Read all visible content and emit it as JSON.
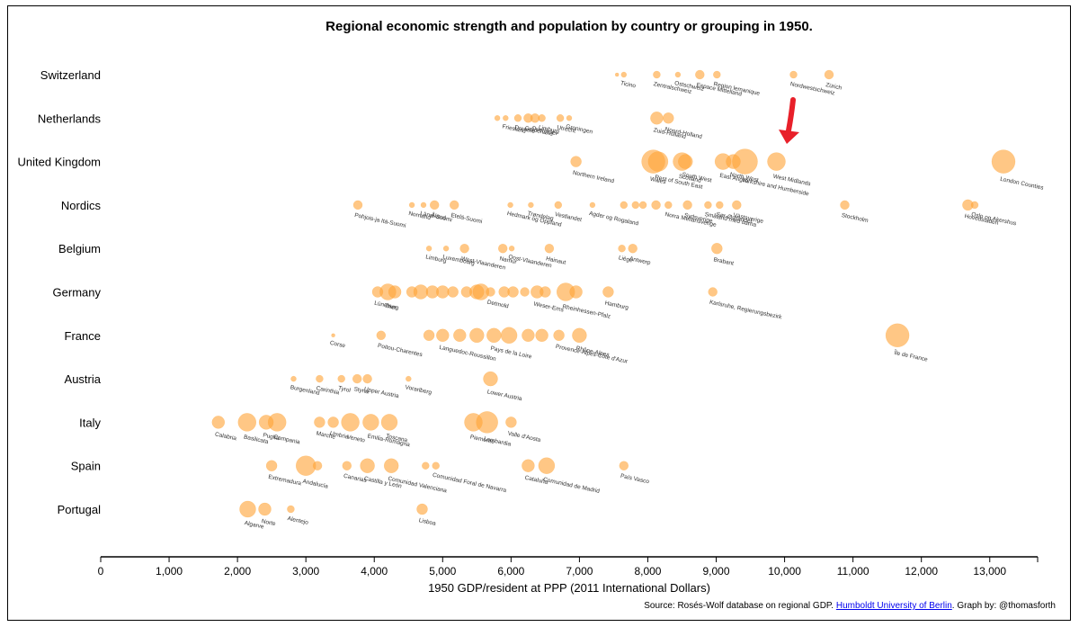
{
  "chart_data": {
    "type": "scatter",
    "title": "Regional economic strength and population by country or grouping in 1950.",
    "xlabel": "1950 GDP/resident at PPP (2011 International Dollars)",
    "ylabel": "",
    "xlim": [
      0,
      13700
    ],
    "x_ticks": [
      0,
      1000,
      2000,
      3000,
      4000,
      5000,
      6000,
      7000,
      8000,
      9000,
      10000,
      11000,
      12000,
      13000
    ],
    "x_tick_labels": [
      "0",
      "1,000",
      "2,000",
      "3,000",
      "4,000",
      "5,000",
      "6,000",
      "7,000",
      "8,000",
      "9,000",
      "10,000",
      "11,000",
      "12,000",
      "13,000"
    ],
    "annotation": "Red arrow pointing to West Midlands (United Kingdom)",
    "groups": [
      {
        "country": "Switzerland",
        "points": [
          {
            "x": 7550,
            "size": 2,
            "label": ""
          },
          {
            "x": 7650,
            "size": 3,
            "label": "Ticino"
          },
          {
            "x": 8130,
            "size": 4,
            "label": "Zentralschweiz"
          },
          {
            "x": 8440,
            "size": 3,
            "label": "Ostschweiz"
          },
          {
            "x": 8760,
            "size": 5,
            "label": "Espace Mittelland"
          },
          {
            "x": 9010,
            "size": 4,
            "label": "Region lemanique"
          },
          {
            "x": 10130,
            "size": 4,
            "label": "Nordwestschweiz"
          },
          {
            "x": 10650,
            "size": 5,
            "label": "Zürich"
          }
        ]
      },
      {
        "country": "Netherlands",
        "points": [
          {
            "x": 5800,
            "size": 3,
            "label": ""
          },
          {
            "x": 5920,
            "size": 3,
            "label": "Friesland"
          },
          {
            "x": 6100,
            "size": 4,
            "label": "Drenthe"
          },
          {
            "x": 6250,
            "size": 5,
            "label": "Gelderland"
          },
          {
            "x": 6350,
            "size": 5,
            "label": "Overijssel"
          },
          {
            "x": 6450,
            "size": 4,
            "label": "Limburg"
          },
          {
            "x": 6720,
            "size": 4,
            "label": "Utrecht"
          },
          {
            "x": 6850,
            "size": 3,
            "label": "Groningen"
          },
          {
            "x": 8130,
            "size": 7,
            "label": "Zuid-Holland"
          },
          {
            "x": 8300,
            "size": 6,
            "label": "Noord-Holland"
          }
        ]
      },
      {
        "country": "United Kingdom",
        "points": [
          {
            "x": 6950,
            "size": 6,
            "label": "Northern Ireland"
          },
          {
            "x": 8080,
            "size": 13,
            "label": "Wales"
          },
          {
            "x": 8150,
            "size": 11,
            "label": "Rest of South East"
          },
          {
            "x": 8500,
            "size": 10,
            "label": "Scotland"
          },
          {
            "x": 8550,
            "size": 8,
            "label": "South West"
          },
          {
            "x": 9100,
            "size": 9,
            "label": "East Anglia"
          },
          {
            "x": 9250,
            "size": 8,
            "label": "North West"
          },
          {
            "x": 9420,
            "size": 14,
            "label": "Yorkshire and Humberside"
          },
          {
            "x": 9880,
            "size": 10,
            "label": "West Midlands"
          },
          {
            "x": 13200,
            "size": 13,
            "label": "London Counties"
          }
        ]
      },
      {
        "country": "Nordics",
        "points": [
          {
            "x": 3760,
            "size": 5,
            "label": "Pohjois-ja Itä-Suomi"
          },
          {
            "x": 4550,
            "size": 3,
            "label": "Norrland"
          },
          {
            "x": 4720,
            "size": 3,
            "label": "Länsi-Suomi"
          },
          {
            "x": 4880,
            "size": 5,
            "label": "Åland"
          },
          {
            "x": 5170,
            "size": 5,
            "label": "Etelä-Suomi"
          },
          {
            "x": 5990,
            "size": 3,
            "label": "Hedmark og Oppland"
          },
          {
            "x": 6290,
            "size": 3,
            "label": "Trøndelag"
          },
          {
            "x": 6690,
            "size": 4,
            "label": "Vestlandet"
          },
          {
            "x": 7190,
            "size": 3,
            "label": "Agder og Rogaland"
          },
          {
            "x": 7650,
            "size": 4,
            "label": ""
          },
          {
            "x": 7820,
            "size": 4,
            "label": ""
          },
          {
            "x": 7930,
            "size": 4,
            "label": ""
          },
          {
            "x": 8120,
            "size": 5,
            "label": ""
          },
          {
            "x": 8300,
            "size": 4,
            "label": "Norra Mellansverige"
          },
          {
            "x": 8580,
            "size": 5,
            "label": "Sydsverige"
          },
          {
            "x": 8880,
            "size": 4,
            "label": "Småland med öarna"
          },
          {
            "x": 9050,
            "size": 4,
            "label": "Sør-Østlandet"
          },
          {
            "x": 9300,
            "size": 5,
            "label": "Västsverige"
          },
          {
            "x": 10880,
            "size": 5,
            "label": "Stockholm"
          },
          {
            "x": 12680,
            "size": 6,
            "label": "Hovedstaden"
          },
          {
            "x": 12780,
            "size": 4,
            "label": "Oslo og Akershus"
          }
        ]
      },
      {
        "country": "Belgium",
        "points": [
          {
            "x": 4800,
            "size": 3,
            "label": "Limburg"
          },
          {
            "x": 5050,
            "size": 3,
            "label": "Luxembourg"
          },
          {
            "x": 5320,
            "size": 5,
            "label": "West-Vlaanderen"
          },
          {
            "x": 5880,
            "size": 5,
            "label": "Namur"
          },
          {
            "x": 6010,
            "size": 3,
            "label": "Oost-Vlaanderen"
          },
          {
            "x": 6560,
            "size": 5,
            "label": "Hainaut"
          },
          {
            "x": 7620,
            "size": 4,
            "label": "Liège"
          },
          {
            "x": 7780,
            "size": 5,
            "label": "Antwerp"
          },
          {
            "x": 9010,
            "size": 6,
            "label": "Brabant"
          }
        ]
      },
      {
        "country": "Germany",
        "points": [
          {
            "x": 4050,
            "size": 6,
            "label": "Lüneburg"
          },
          {
            "x": 4200,
            "size": 9,
            "label": "Trier"
          },
          {
            "x": 4300,
            "size": 7,
            "label": ""
          },
          {
            "x": 4550,
            "size": 6,
            "label": ""
          },
          {
            "x": 4680,
            "size": 8,
            "label": ""
          },
          {
            "x": 4850,
            "size": 7,
            "label": ""
          },
          {
            "x": 5000,
            "size": 7,
            "label": ""
          },
          {
            "x": 5150,
            "size": 6,
            "label": ""
          },
          {
            "x": 5350,
            "size": 6,
            "label": ""
          },
          {
            "x": 5500,
            "size": 8,
            "label": ""
          },
          {
            "x": 5560,
            "size": 9,
            "label": ""
          },
          {
            "x": 5700,
            "size": 5,
            "label": "Detmold"
          },
          {
            "x": 5900,
            "size": 6,
            "label": ""
          },
          {
            "x": 6030,
            "size": 6,
            "label": ""
          },
          {
            "x": 6200,
            "size": 5,
            "label": ""
          },
          {
            "x": 6380,
            "size": 7,
            "label": "Weser-Ems"
          },
          {
            "x": 6500,
            "size": 6,
            "label": ""
          },
          {
            "x": 6800,
            "size": 10,
            "label": "Rheinhessen-Pfalz"
          },
          {
            "x": 6950,
            "size": 7,
            "label": ""
          },
          {
            "x": 7420,
            "size": 6,
            "label": "Hamburg"
          },
          {
            "x": 8950,
            "size": 5,
            "label": "Karlsruhe, Regierungsbezirk"
          }
        ]
      },
      {
        "country": "France",
        "points": [
          {
            "x": 3400,
            "size": 2,
            "label": "Corse"
          },
          {
            "x": 4100,
            "size": 5,
            "label": "Poitou-Charentes"
          },
          {
            "x": 4800,
            "size": 6,
            "label": ""
          },
          {
            "x": 5000,
            "size": 7,
            "label": "Languedoc-Roussillon"
          },
          {
            "x": 5250,
            "size": 7,
            "label": ""
          },
          {
            "x": 5500,
            "size": 8,
            "label": ""
          },
          {
            "x": 5750,
            "size": 8,
            "label": "Pays de la Loire"
          },
          {
            "x": 5970,
            "size": 9,
            "label": ""
          },
          {
            "x": 6250,
            "size": 7,
            "label": ""
          },
          {
            "x": 6450,
            "size": 7,
            "label": ""
          },
          {
            "x": 6700,
            "size": 6,
            "label": "Provence-Alpes-Côte d'Azur"
          },
          {
            "x": 7000,
            "size": 8,
            "label": "Rhône-Alpes"
          },
          {
            "x": 11650,
            "size": 13,
            "label": "Île de France"
          }
        ]
      },
      {
        "country": "Austria",
        "points": [
          {
            "x": 2820,
            "size": 3,
            "label": "Burgenland"
          },
          {
            "x": 3200,
            "size": 4,
            "label": "Carinthia"
          },
          {
            "x": 3520,
            "size": 4,
            "label": "Tyrol"
          },
          {
            "x": 3750,
            "size": 5,
            "label": "Styria"
          },
          {
            "x": 3900,
            "size": 5,
            "label": "Upper Austria"
          },
          {
            "x": 4500,
            "size": 3,
            "label": "Vorarlberg"
          },
          {
            "x": 5700,
            "size": 8,
            "label": "Lower Austria"
          }
        ]
      },
      {
        "country": "Italy",
        "points": [
          {
            "x": 1720,
            "size": 7,
            "label": "Calabria"
          },
          {
            "x": 2140,
            "size": 10,
            "label": "Basilicata"
          },
          {
            "x": 2420,
            "size": 8,
            "label": "Puglia"
          },
          {
            "x": 2580,
            "size": 10,
            "label": "Campania"
          },
          {
            "x": 3200,
            "size": 6,
            "label": "Marche"
          },
          {
            "x": 3400,
            "size": 6,
            "label": "Umbria"
          },
          {
            "x": 3650,
            "size": 10,
            "label": "Veneto"
          },
          {
            "x": 3950,
            "size": 9,
            "label": "Emilia-Romagna"
          },
          {
            "x": 4220,
            "size": 9,
            "label": "Toscana"
          },
          {
            "x": 5450,
            "size": 10,
            "label": "Piemonte"
          },
          {
            "x": 5650,
            "size": 12,
            "label": "Lombardia"
          },
          {
            "x": 6000,
            "size": 6,
            "label": "Valle d'Aosta"
          }
        ]
      },
      {
        "country": "Spain",
        "points": [
          {
            "x": 2500,
            "size": 6,
            "label": "Extremadura"
          },
          {
            "x": 3000,
            "size": 11,
            "label": "Andalucía"
          },
          {
            "x": 3170,
            "size": 5,
            "label": ""
          },
          {
            "x": 3600,
            "size": 5,
            "label": "Canarias"
          },
          {
            "x": 3900,
            "size": 8,
            "label": "Castilla y León"
          },
          {
            "x": 4250,
            "size": 8,
            "label": "Comunidad Valenciana"
          },
          {
            "x": 4750,
            "size": 4,
            "label": ""
          },
          {
            "x": 4900,
            "size": 4,
            "label": "Comunidad Foral de Navarra"
          },
          {
            "x": 6250,
            "size": 7,
            "label": "Cataluña"
          },
          {
            "x": 6520,
            "size": 9,
            "label": "Comunidad de Madrid"
          },
          {
            "x": 7650,
            "size": 5,
            "label": "País Vasco"
          }
        ]
      },
      {
        "country": "Portugal",
        "points": [
          {
            "x": 2150,
            "size": 9,
            "label": "Algarve"
          },
          {
            "x": 2400,
            "size": 7,
            "label": "Norte"
          },
          {
            "x": 2780,
            "size": 4,
            "label": "Alentejo"
          },
          {
            "x": 4700,
            "size": 6,
            "label": "Lisboa"
          }
        ]
      }
    ]
  },
  "source": {
    "prefix": "Source: Rosés-Wolf database on regional GDP. ",
    "link_text": "Humboldt University of Berlin",
    "suffix": ". Graph by: @thomasforth"
  },
  "colors": {
    "bubble": "#ffa53a",
    "arrow": "#e8202a"
  }
}
